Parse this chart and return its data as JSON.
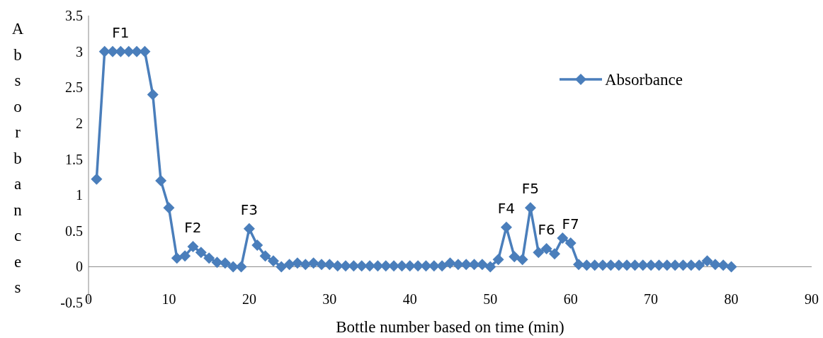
{
  "chart_data": {
    "type": "line",
    "xlabel": "Bottle number based on time (min)",
    "ylabel": "Absorbances",
    "x": [
      1,
      2,
      3,
      4,
      5,
      6,
      7,
      8,
      9,
      10,
      11,
      12,
      13,
      14,
      15,
      16,
      17,
      18,
      19,
      20,
      21,
      22,
      23,
      24,
      25,
      26,
      27,
      28,
      29,
      30,
      31,
      32,
      33,
      34,
      35,
      36,
      37,
      38,
      39,
      40,
      41,
      42,
      43,
      44,
      45,
      46,
      47,
      48,
      49,
      50,
      51,
      52,
      53,
      54,
      55,
      56,
      57,
      58,
      59,
      60,
      61,
      62,
      63,
      64,
      65,
      66,
      67,
      68,
      69,
      70,
      71,
      72,
      73,
      74,
      75,
      76,
      77,
      78,
      79,
      80
    ],
    "series": [
      {
        "name": "Absorbance",
        "color": "#4a7ebb",
        "values": [
          1.22,
          3,
          3,
          3,
          3,
          3,
          3,
          2.4,
          1.2,
          0.82,
          0.12,
          0.15,
          0.28,
          0.2,
          0.12,
          0.06,
          0.05,
          0,
          0,
          0.53,
          0.3,
          0.15,
          0.08,
          0,
          0.03,
          0.05,
          0.03,
          0.05,
          0.03,
          0.03,
          0.01,
          0.01,
          0.01,
          0.01,
          0.01,
          0.01,
          0.01,
          0.01,
          0.01,
          0.01,
          0.01,
          0.01,
          0.01,
          0.01,
          0.05,
          0.03,
          0.03,
          0.03,
          0.03,
          0,
          0.1,
          0.55,
          0.14,
          0.1,
          0.82,
          0.2,
          0.25,
          0.18,
          0.4,
          0.33,
          0.03,
          0.02,
          0.02,
          0.02,
          0.02,
          0.02,
          0.02,
          0.02,
          0.02,
          0.02,
          0.02,
          0.02,
          0.02,
          0.02,
          0.02,
          0.02,
          0.08,
          0.03,
          0.02,
          0
        ]
      }
    ],
    "xlim": [
      0,
      90
    ],
    "xticks": [
      0,
      10,
      20,
      30,
      40,
      50,
      60,
      70,
      80,
      90
    ],
    "ylim": [
      -0.5,
      3.5
    ],
    "yticks": [
      -0.5,
      0,
      0.5,
      1,
      1.5,
      2,
      2.5,
      3,
      3.5
    ],
    "marker": "diamond",
    "line_style": "solid",
    "grid": false,
    "legend": "top right",
    "annotations": [
      {
        "text": "F1",
        "x": 4,
        "y": 3
      },
      {
        "text": "F2",
        "x": 13,
        "y": 0.28
      },
      {
        "text": "F3",
        "x": 20,
        "y": 0.53
      },
      {
        "text": "F4",
        "x": 52,
        "y": 0.55
      },
      {
        "text": "F5",
        "x": 55,
        "y": 0.82
      },
      {
        "text": "F6",
        "x": 57,
        "y": 0.25
      },
      {
        "text": "F7",
        "x": 60,
        "y": 0.33
      }
    ]
  }
}
